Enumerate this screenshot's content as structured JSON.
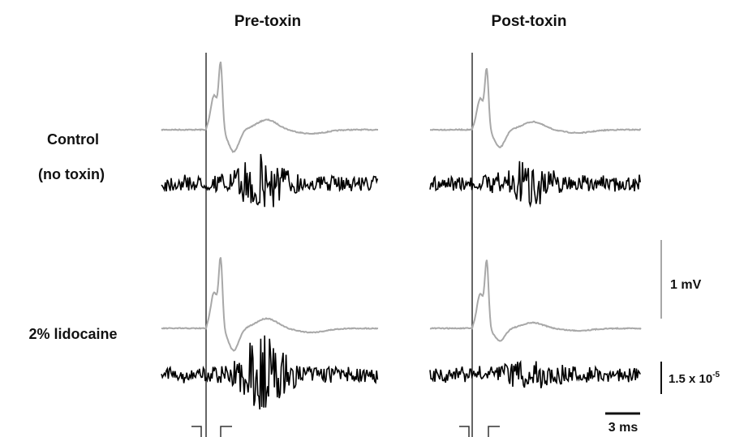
{
  "chart_data": {
    "type": "line",
    "columns": [
      "Pre-toxin",
      "Post-toxin"
    ],
    "rows": [
      "Control\n(no toxin)",
      "2% lidocaine"
    ],
    "row_labels": [
      [
        "Control",
        "(no toxin)"
      ],
      [
        "2% lidocaine"
      ]
    ],
    "scale_bars": {
      "amplitude": "1 mV",
      "noise": "1.5 x 10",
      "noise_exponent": "-5",
      "time": "3 ms"
    },
    "colors": {
      "cap_trace": "#a8a8a8",
      "noise_trace": "#000000",
      "stimulus_line": "#333333"
    },
    "panels": [
      {
        "row": "Control (no toxin)",
        "column": "Pre-toxin",
        "cap_peak_mV": 1.0,
        "cap_trough_mV": -0.35,
        "noise_burst_amplitude": 0.7
      },
      {
        "row": "Control (no toxin)",
        "column": "Post-toxin",
        "cap_peak_mV": 0.9,
        "cap_trough_mV": -0.28,
        "noise_burst_amplitude": 0.5
      },
      {
        "row": "2% lidocaine",
        "column": "Pre-toxin",
        "cap_peak_mV": 1.05,
        "cap_trough_mV": -0.35,
        "noise_burst_amplitude": 1.0
      },
      {
        "row": "2% lidocaine",
        "column": "Post-toxin",
        "cap_peak_mV": 1.0,
        "cap_trough_mV": -0.2,
        "noise_burst_amplitude": 0.25
      }
    ]
  }
}
